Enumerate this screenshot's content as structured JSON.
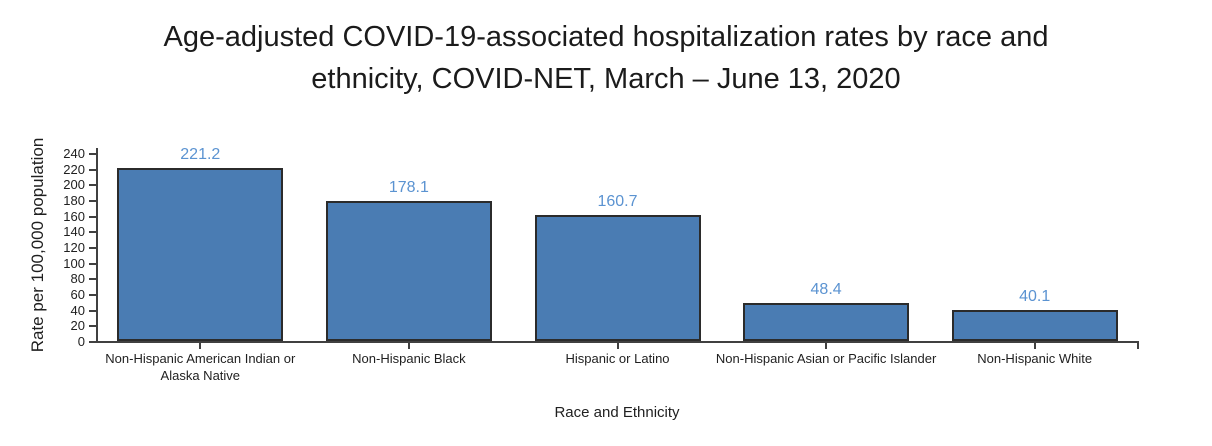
{
  "title_lines": [
    "Age-adjusted COVID-19-associated hospitalization rates by race and",
    "ethnicity, COVID-NET, March – June 13, 2020"
  ],
  "chart_data": {
    "type": "bar",
    "title": "Age-adjusted COVID-19-associated hospitalization rates by race and ethnicity, COVID-NET, March – June 13, 2020",
    "categories": [
      "Non-Hispanic American Indian or Alaska Native",
      "Non-Hispanic Black",
      "Hispanic or Latino",
      "Non-Hispanic Asian or Pacific Islander",
      "Non-Hispanic White"
    ],
    "values": [
      221.2,
      178.1,
      160.7,
      48.4,
      40.1
    ],
    "value_labels": [
      "221.2",
      "178.1",
      "160.7",
      "48.4",
      "40.1"
    ],
    "xlabel": "Race and Ethnicity",
    "ylabel": "Rate per 100,000 population",
    "ylim": [
      0,
      240
    ],
    "yticks": [
      0,
      20,
      40,
      60,
      80,
      100,
      120,
      140,
      160,
      180,
      200,
      220,
      240
    ],
    "grid": false,
    "legend": false,
    "colors": {
      "bar_fill": "#4a7cb3",
      "bar_border": "#2b2b2b",
      "value_label": "#5b93d1",
      "axis": "#404040",
      "text": "#1f1f1f"
    }
  }
}
